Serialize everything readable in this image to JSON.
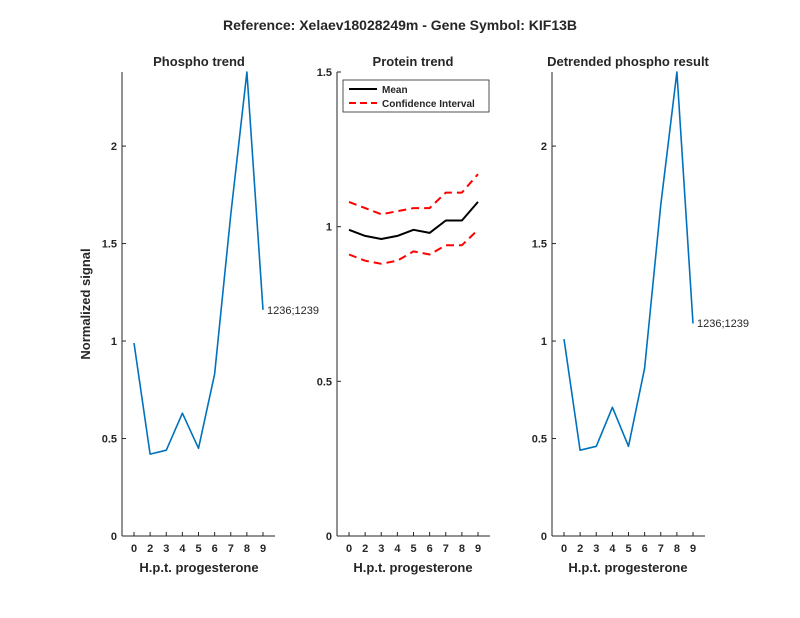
{
  "figure_title": "Reference:  Xelaev18028249m - Gene Symbol:  KIF13B",
  "chart_data": [
    {
      "type": "line",
      "title": "Phospho trend",
      "xlabel": "H.p.t. progesterone",
      "ylabel": "Normalized signal",
      "x_tick_labels": [
        "0",
        "2",
        "3",
        "4",
        "5",
        "6",
        "7",
        "8",
        "9"
      ],
      "ylim": [
        0,
        2.38
      ],
      "y_ticks": [
        0,
        0.5,
        1,
        1.5,
        2
      ],
      "y_tick_labels": [
        "0",
        "0.5",
        "1",
        "1.5",
        "2"
      ],
      "series": [
        {
          "name": "1236;1239",
          "color": "#0072BD",
          "values": [
            0.99,
            0.42,
            0.44,
            0.63,
            0.45,
            0.83,
            1.65,
            2.38,
            1.16
          ]
        }
      ],
      "annotation": "1236;1239"
    },
    {
      "type": "line",
      "title": "Protein trend",
      "xlabel": "H.p.t. progesterone",
      "ylabel": "",
      "x_tick_labels": [
        "0",
        "2",
        "3",
        "4",
        "5",
        "6",
        "7",
        "8",
        "9"
      ],
      "ylim": [
        0,
        1.5
      ],
      "y_ticks": [
        0,
        0.5,
        1,
        1.5
      ],
      "y_tick_labels": [
        "0",
        "0.5",
        "1",
        "1.5"
      ],
      "legend": {
        "position": "top-left",
        "entries": [
          "Mean",
          "Confidence Interval"
        ]
      },
      "series": [
        {
          "name": "Mean",
          "color": "#000000",
          "style": "solid",
          "values": [
            0.99,
            0.97,
            0.96,
            0.97,
            0.99,
            0.98,
            1.02,
            1.02,
            1.08
          ]
        },
        {
          "name": "Confidence Interval",
          "color": "#FF0000",
          "style": "dashed",
          "values": [
            1.08,
            1.06,
            1.04,
            1.05,
            1.06,
            1.06,
            1.11,
            1.11,
            1.17
          ]
        },
        {
          "name": "Confidence Interval (lower)",
          "color": "#FF0000",
          "style": "dashed",
          "values": [
            0.91,
            0.89,
            0.88,
            0.89,
            0.92,
            0.91,
            0.94,
            0.94,
            0.99
          ]
        }
      ]
    },
    {
      "type": "line",
      "title": "Detrended phospho result",
      "xlabel": "H.p.t. progesterone",
      "ylabel": "",
      "x_tick_labels": [
        "0",
        "2",
        "3",
        "4",
        "5",
        "6",
        "7",
        "8",
        "9"
      ],
      "ylim": [
        0,
        2.38
      ],
      "y_ticks": [
        0,
        0.5,
        1,
        1.5,
        2
      ],
      "y_tick_labels": [
        "0",
        "0.5",
        "1",
        "1.5",
        "2"
      ],
      "series": [
        {
          "name": "1236;1239",
          "color": "#0072BD",
          "values": [
            1.01,
            0.44,
            0.46,
            0.66,
            0.46,
            0.86,
            1.7,
            2.38,
            1.09
          ]
        }
      ],
      "annotation": "1236;1239"
    }
  ]
}
